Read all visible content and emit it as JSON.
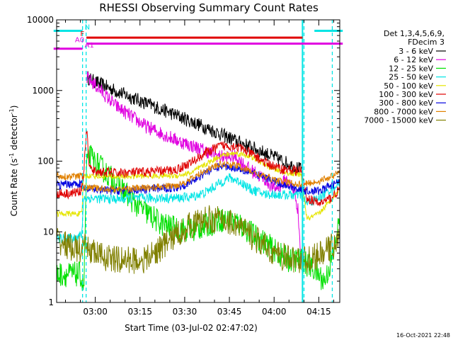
{
  "chart_data": {
    "type": "line",
    "title": "RHESSI Observing Summary Count Rates",
    "xlabel": "Start Time (03-Jul-02 02:47:02)",
    "ylabel": "Count Rate (s⁻¹ detector⁻¹)",
    "ylabel_base": "Count Rate (s",
    "ylabel_mid": " detector",
    "ylabel_end": ")",
    "ylabel_exp": "-1",
    "yscale": "log",
    "xlim": [
      0,
      95
    ],
    "ylim": [
      1,
      10000
    ],
    "x_tick_labels": [
      "03:00",
      "03:15",
      "03:30",
      "03:45",
      "04:00",
      "04:15"
    ],
    "x_tick_values": [
      12.97,
      27.97,
      42.97,
      57.97,
      72.97,
      87.97
    ],
    "y_tick_labels": [
      "1",
      "10",
      "100",
      "1000",
      "10000"
    ],
    "y_tick_values": [
      1,
      10,
      100,
      1000,
      10000
    ],
    "legend_header": [
      "Det 1,3,4,5,6,9,",
      "FDecim 3"
    ],
    "legend_position": "right",
    "timestamp": "16-Oct-2021 22:48",
    "flags": [
      {
        "label": "N",
        "color": "#00e5e5",
        "segments": [
          [
            -1,
            8.7
          ],
          [
            86.5,
            96
          ]
        ],
        "level": 7000
      },
      {
        "label": "F",
        "color": "#e00000",
        "segments": [
          [
            10,
            82.5
          ]
        ],
        "level": 5600
      },
      {
        "label": "A0",
        "color": "#e000e0",
        "segments": [
          [
            10,
            96
          ]
        ],
        "level": 4600
      },
      {
        "label": "A1",
        "color": "#e000e0",
        "segments": [
          [
            -1,
            8.7
          ]
        ],
        "level": 3900
      }
    ],
    "vlines": [
      {
        "x": 8.7,
        "color": "#00e5e5",
        "style": "dashed"
      },
      {
        "x": 9.9,
        "color": "#00e5e5",
        "style": "dashed"
      },
      {
        "x": 82.5,
        "color": "#00e5e5",
        "style": "solid"
      },
      {
        "x": 83.0,
        "color": "#00e5e5",
        "style": "dashed"
      },
      {
        "x": 92.5,
        "color": "#00e5e5",
        "style": "dashed"
      }
    ],
    "series": [
      {
        "name": "3 - 6 keV",
        "color": "#000000",
        "jitter": 0.1,
        "x": [
          10.2,
          12,
          20,
          30,
          40,
          50,
          60,
          70,
          75,
          80,
          82.3
        ],
        "y": [
          1550,
          1380,
          980,
          660,
          450,
          300,
          195,
          130,
          105,
          82,
          75
        ]
      },
      {
        "name": "6 - 12 keV",
        "color": "#e000e0",
        "jitter": 0.1,
        "x": [
          10.2,
          12,
          20,
          30,
          40,
          50,
          55,
          60,
          65,
          70,
          73,
          75,
          77,
          79,
          80,
          81,
          82
        ],
        "y": [
          1500,
          1300,
          600,
          310,
          200,
          140,
          115,
          115,
          75,
          55,
          40,
          45,
          55,
          42,
          35,
          20,
          4
        ]
      },
      {
        "name": "12 - 25 keV",
        "color": "#00e000",
        "jitter": 0.18,
        "x": [
          0,
          5,
          8,
          8.7,
          9.2,
          10,
          11,
          13,
          15,
          18,
          22,
          26,
          30,
          35,
          40,
          45,
          50,
          55,
          60,
          63,
          66,
          70,
          74,
          78,
          82,
          86,
          90,
          93,
          95
        ],
        "y": [
          2.5,
          2.5,
          2.5,
          1.8,
          1.8,
          80,
          120,
          95,
          80,
          60,
          40,
          26,
          19,
          13,
          11,
          10.5,
          12,
          15,
          14,
          11.5,
          9,
          7,
          5,
          4,
          4,
          3,
          2,
          5,
          15
        ]
      },
      {
        "name": "25 - 50 keV",
        "color": "#00e5e5",
        "jitter": 0.07,
        "x": [
          0,
          5,
          8.5,
          9,
          10,
          20,
          30,
          40,
          45,
          50,
          55,
          58,
          62,
          65,
          70,
          80,
          82,
          84,
          88,
          92,
          95
        ],
        "y": [
          8,
          8,
          9,
          30,
          30,
          29,
          30,
          30,
          31,
          36,
          50,
          58,
          50,
          40,
          34,
          33,
          33,
          25,
          30,
          40,
          50
        ]
      },
      {
        "name": "50 - 100 keV",
        "color": "#e5e500",
        "jitter": 0.04,
        "x": [
          0,
          5,
          8.5,
          9,
          10,
          20,
          30,
          40,
          45,
          50,
          55,
          60,
          64,
          68,
          72,
          76,
          80,
          82,
          84,
          88,
          92,
          95
        ],
        "y": [
          18,
          18,
          18,
          62,
          62,
          60,
          62,
          62,
          68,
          90,
          120,
          130,
          120,
          100,
          80,
          70,
          65,
          65,
          15,
          18,
          28,
          40
        ]
      },
      {
        "name": "100 - 300 keV",
        "color": "#e00000",
        "jitter": 0.07,
        "x": [
          0,
          5,
          8,
          9,
          10,
          11,
          12,
          20,
          30,
          40,
          45,
          50,
          55,
          60,
          65,
          70,
          75,
          80,
          82,
          84,
          88,
          92,
          95
        ],
        "y": [
          35,
          35,
          38,
          60,
          300,
          85,
          72,
          68,
          70,
          75,
          95,
          130,
          165,
          165,
          130,
          95,
          78,
          74,
          72,
          30,
          25,
          30,
          40
        ]
      },
      {
        "name": "300 - 800 keV",
        "color": "#0000e0",
        "jitter": 0.06,
        "x": [
          0,
          5,
          8.5,
          9,
          10,
          20,
          30,
          40,
          45,
          50,
          55,
          60,
          65,
          70,
          75,
          80,
          82,
          84,
          88,
          92,
          95
        ],
        "y": [
          45,
          48,
          48,
          40,
          40,
          38,
          40,
          42,
          50,
          70,
          85,
          82,
          70,
          58,
          48,
          42,
          40,
          38,
          38,
          45,
          52
        ]
      },
      {
        "name": "800 - 7000 keV",
        "color": "#e08000",
        "jitter": 0.05,
        "x": [
          0,
          5,
          8.5,
          9,
          10,
          20,
          30,
          40,
          45,
          50,
          55,
          60,
          65,
          70,
          75,
          80,
          82,
          84,
          88,
          92,
          95
        ],
        "y": [
          62,
          60,
          62,
          42,
          42,
          40,
          42,
          45,
          55,
          75,
          90,
          88,
          72,
          60,
          52,
          48,
          47,
          48,
          52,
          60,
          70
        ]
      },
      {
        "name": "7000 - 15000 keV",
        "color": "#808000",
        "jitter": 0.2,
        "x": [
          0,
          2,
          5,
          8,
          10,
          13,
          15,
          20,
          25,
          30,
          35,
          40,
          45,
          50,
          55,
          60,
          65,
          70,
          75,
          80,
          82,
          84,
          88,
          92,
          95
        ],
        "y": [
          8,
          7,
          6,
          5.5,
          6,
          5,
          4.5,
          4,
          4,
          4,
          6,
          9,
          12.5,
          15,
          15,
          13,
          9,
          6,
          4.5,
          4,
          4,
          4,
          4.5,
          6,
          8
        ]
      }
    ]
  }
}
